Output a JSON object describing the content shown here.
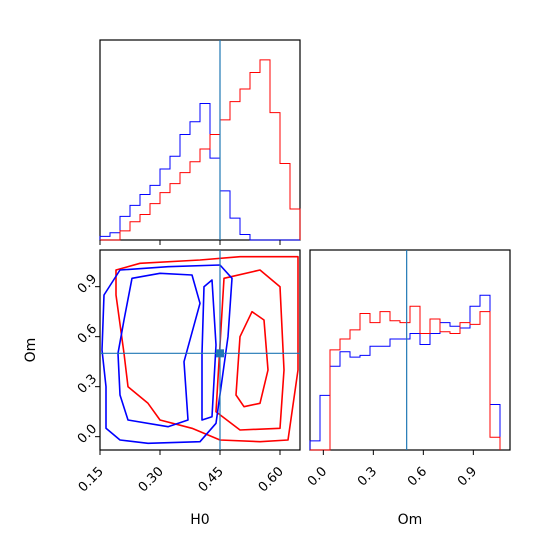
{
  "chart_data": {
    "type": "corner",
    "parameters": [
      "H0",
      "Om"
    ],
    "truths": {
      "H0": 0.45,
      "Om": 0.5
    },
    "colors": {
      "red_chain": "#ff0000",
      "blue_chain": "#0000ff",
      "truth": "#1f77b4"
    },
    "axes": {
      "H0": {
        "label": "H0",
        "lim": [
          0.15,
          0.65
        ],
        "ticks": [
          0.15,
          0.3,
          0.45,
          0.6
        ],
        "tick_labels": [
          "0.15",
          "0.30",
          "0.45",
          "0.60"
        ]
      },
      "Om": {
        "label": "Om",
        "lim": [
          -0.08,
          1.12
        ],
        "ticks": [
          0.0,
          0.3,
          0.6,
          0.9
        ],
        "tick_labels": [
          "0.0",
          "0.3",
          "0.6",
          "0.9"
        ]
      }
    },
    "hist_H0": {
      "bin_width": 0.025,
      "blue": {
        "edges": [
          0.15,
          0.175,
          0.2,
          0.225,
          0.25,
          0.275,
          0.3,
          0.325,
          0.35,
          0.375,
          0.4,
          0.425,
          0.45,
          0.475,
          0.5,
          0.525,
          0.55,
          0.575,
          0.6,
          0.625,
          0.65
        ],
        "counts": [
          0.02,
          0.04,
          0.13,
          0.19,
          0.25,
          0.3,
          0.39,
          0.46,
          0.58,
          0.65,
          0.75,
          0.45,
          0.27,
          0.12,
          0.03,
          0,
          0,
          0,
          0,
          0
        ]
      },
      "red": {
        "edges": [
          0.15,
          0.175,
          0.2,
          0.225,
          0.25,
          0.275,
          0.3,
          0.325,
          0.35,
          0.375,
          0.4,
          0.425,
          0.45,
          0.475,
          0.5,
          0.525,
          0.55,
          0.575,
          0.6,
          0.625,
          0.65
        ],
        "counts": [
          0,
          0,
          0.05,
          0.1,
          0.14,
          0.2,
          0.26,
          0.31,
          0.37,
          0.43,
          0.5,
          0.58,
          0.66,
          0.76,
          0.83,
          0.92,
          0.99,
          0.7,
          0.42,
          0.17
        ]
      }
    },
    "hist_Om": {
      "blue": {
        "edges": [
          -0.08,
          -0.02,
          0.04,
          0.1,
          0.16,
          0.22,
          0.28,
          0.34,
          0.4,
          0.46,
          0.52,
          0.58,
          0.64,
          0.7,
          0.76,
          0.82,
          0.88,
          0.94,
          1.0,
          1.06
        ],
        "counts": [
          0.05,
          0.3,
          0.46,
          0.54,
          0.51,
          0.52,
          0.57,
          0.57,
          0.61,
          0.61,
          0.64,
          0.58,
          0.64,
          0.7,
          0.68,
          0.67,
          0.79,
          0.85,
          0.25
        ]
      },
      "red": {
        "edges": [
          -0.08,
          -0.02,
          0.04,
          0.1,
          0.16,
          0.22,
          0.28,
          0.34,
          0.4,
          0.46,
          0.52,
          0.58,
          0.64,
          0.7,
          0.76,
          0.82,
          0.88,
          0.94,
          1.0,
          1.06
        ],
        "counts": [
          0,
          0,
          0.55,
          0.61,
          0.66,
          0.75,
          0.7,
          0.76,
          0.71,
          0.7,
          0.79,
          0.64,
          0.72,
          0.65,
          0.64,
          0.7,
          0.69,
          0.76,
          0.07
        ]
      }
    },
    "contours": {
      "blue": [
        [
          [
            0.155,
            0.52
          ],
          [
            0.165,
            0.3
          ],
          [
            0.165,
            0.05
          ],
          [
            0.2,
            -0.02
          ],
          [
            0.27,
            -0.04
          ],
          [
            0.4,
            -0.03
          ],
          [
            0.44,
            0.08
          ],
          [
            0.47,
            0.6
          ],
          [
            0.48,
            0.95
          ],
          [
            0.45,
            1.03
          ],
          [
            0.32,
            1.02
          ],
          [
            0.2,
            1.0
          ],
          [
            0.16,
            0.85
          ],
          [
            0.155,
            0.52
          ]
        ],
        [
          [
            0.195,
            0.5
          ],
          [
            0.2,
            0.25
          ],
          [
            0.22,
            0.1
          ],
          [
            0.32,
            0.06
          ],
          [
            0.37,
            0.1
          ],
          [
            0.36,
            0.45
          ],
          [
            0.4,
            0.8
          ],
          [
            0.38,
            0.97
          ],
          [
            0.3,
            0.98
          ],
          [
            0.23,
            0.95
          ],
          [
            0.21,
            0.7
          ],
          [
            0.195,
            0.5
          ]
        ],
        [
          [
            0.405,
            0.1
          ],
          [
            0.405,
            0.5
          ],
          [
            0.41,
            0.9
          ],
          [
            0.43,
            0.94
          ],
          [
            0.44,
            0.55
          ],
          [
            0.43,
            0.12
          ],
          [
            0.405,
            0.1
          ]
        ]
      ],
      "red": [
        [
          [
            0.21,
            0.5
          ],
          [
            0.22,
            0.3
          ],
          [
            0.27,
            0.2
          ],
          [
            0.3,
            0.1
          ],
          [
            0.38,
            0.05
          ],
          [
            0.45,
            -0.02
          ],
          [
            0.55,
            -0.03
          ],
          [
            0.62,
            -0.02
          ],
          [
            0.645,
            0.4
          ],
          [
            0.645,
            1.08
          ],
          [
            0.5,
            1.08
          ],
          [
            0.4,
            1.06
          ],
          [
            0.25,
            1.04
          ],
          [
            0.19,
            1.0
          ],
          [
            0.19,
            0.85
          ],
          [
            0.21,
            0.5
          ]
        ],
        [
          [
            0.44,
            0.15
          ],
          [
            0.45,
            0.55
          ],
          [
            0.46,
            0.95
          ],
          [
            0.55,
            1.0
          ],
          [
            0.6,
            0.9
          ],
          [
            0.61,
            0.4
          ],
          [
            0.6,
            0.05
          ],
          [
            0.5,
            0.04
          ],
          [
            0.44,
            0.15
          ]
        ],
        [
          [
            0.49,
            0.25
          ],
          [
            0.5,
            0.6
          ],
          [
            0.53,
            0.75
          ],
          [
            0.56,
            0.7
          ],
          [
            0.57,
            0.4
          ],
          [
            0.55,
            0.2
          ],
          [
            0.51,
            0.18
          ],
          [
            0.49,
            0.25
          ]
        ]
      ]
    }
  }
}
